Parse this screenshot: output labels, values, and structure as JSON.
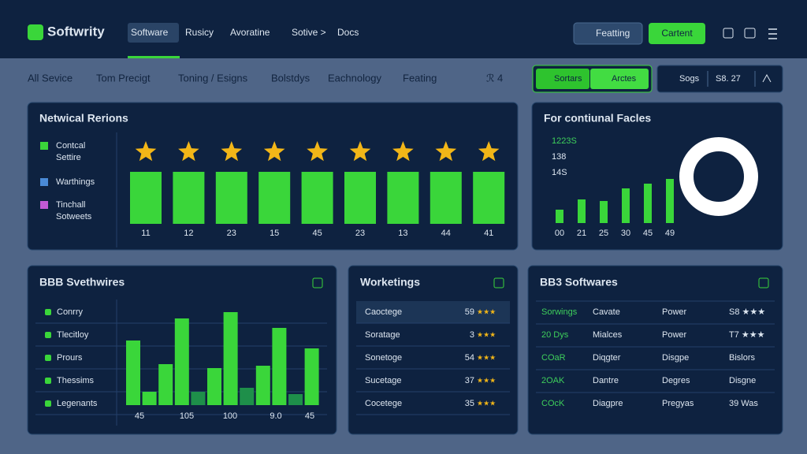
{
  "nav": {
    "logo": "Softwrity",
    "items": [
      "Software",
      "Rusicy",
      "Avoratine",
      "Sotive >",
      "Docs"
    ],
    "dropdown": "Featting",
    "button": "Cartent"
  },
  "tabs": [
    "All Sevice",
    "Tom Precigt",
    "Toning / Esigns",
    "Bolstdys",
    "Eachnology",
    "Feating",
    "ℛ 4"
  ],
  "toggle": [
    "Sortars",
    "Arctes"
  ],
  "search": {
    "label": "Sogs",
    "value": "S8. 27"
  },
  "panel1": {
    "title": "Netwical Rerions",
    "legend": [
      [
        "Contcal",
        "Settire"
      ],
      [
        "Warthings"
      ],
      [
        "Tinchall",
        "Sotweets"
      ]
    ],
    "labels": [
      "11",
      "12",
      "23",
      "15",
      "45",
      "23",
      "13",
      "44",
      "41"
    ]
  },
  "panel2": {
    "title": "For contiunal Facles",
    "stats": [
      "1223S",
      "138",
      "14S"
    ],
    "bars": [
      17,
      30,
      28,
      44,
      50,
      56
    ],
    "labels": [
      "00",
      "21",
      "25",
      "30",
      "45",
      "49"
    ]
  },
  "panel3": {
    "title": "BBB Svethwires",
    "legend": [
      "Conrry",
      "Tlecitloy",
      "Prours",
      "Thessims",
      "Legenants"
    ],
    "bars": [
      {
        "value": 82,
        "color": "#3ad63a"
      },
      {
        "value": 17,
        "color": "#3ad63a"
      },
      {
        "value": 52,
        "color": "#3ad63a"
      },
      {
        "value": 110,
        "color": "#3ad63a"
      },
      {
        "value": 17,
        "color": "#1e8f4a"
      },
      {
        "value": 47,
        "color": "#3ad63a"
      },
      {
        "value": 118,
        "color": "#3ad63a"
      },
      {
        "value": 22,
        "color": "#1e8f4a"
      },
      {
        "value": 50,
        "color": "#3ad63a"
      },
      {
        "value": 98,
        "color": "#3ad63a"
      },
      {
        "value": 14,
        "color": "#1e8f4a"
      },
      {
        "value": 72,
        "color": "#3ad63a"
      }
    ],
    "labels": [
      "45",
      "105",
      "100",
      "9.0",
      "45"
    ]
  },
  "panel4": {
    "title": "Worketings",
    "rows": [
      {
        "name": "Caoctege",
        "score": "59",
        "stars": "★★★"
      },
      {
        "name": "Soratage",
        "score": "3",
        "stars": "★★★"
      },
      {
        "name": "Sonetoge",
        "score": "54",
        "stars": "★★★"
      },
      {
        "name": "Sucetage",
        "score": "37",
        "stars": "★★★"
      },
      {
        "name": "Cocetege",
        "score": "35",
        "stars": "★★★"
      }
    ]
  },
  "panel5": {
    "title": "BB3 Softwares",
    "rows": [
      [
        "Sorwings",
        "Cavate",
        "Power",
        "S8 ★★★"
      ],
      [
        "20 Dys",
        "Mialces",
        "Power",
        "T7 ★★★"
      ],
      [
        "COaR",
        "Diqgter",
        "Disgpe",
        "Bislors"
      ],
      [
        "2OAK",
        "Dantre",
        "Degres",
        "Disgne"
      ],
      [
        "COcK",
        "Diagpre",
        "Pregyas",
        "39 Was"
      ]
    ]
  }
}
